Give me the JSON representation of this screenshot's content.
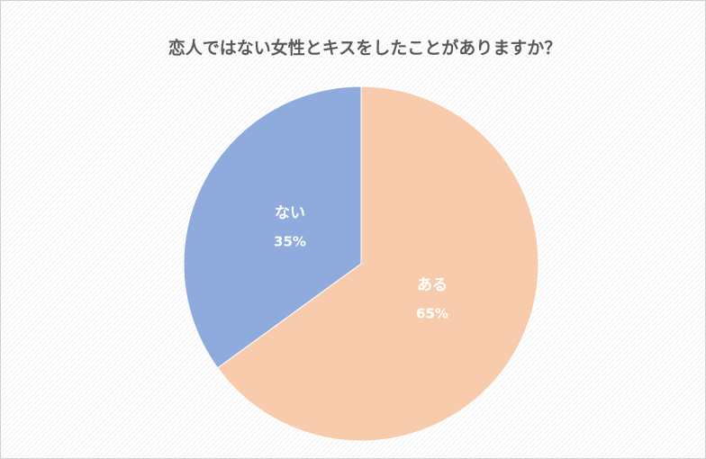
{
  "chart_data": {
    "type": "pie",
    "title": "恋人ではない女性とキスをしたことがありますか？",
    "categories": [
      "ある",
      "ない"
    ],
    "values": [
      65,
      35
    ],
    "value_labels": [
      "65%",
      "35%"
    ],
    "colors": [
      "#f8cbad",
      "#8faadc"
    ]
  }
}
